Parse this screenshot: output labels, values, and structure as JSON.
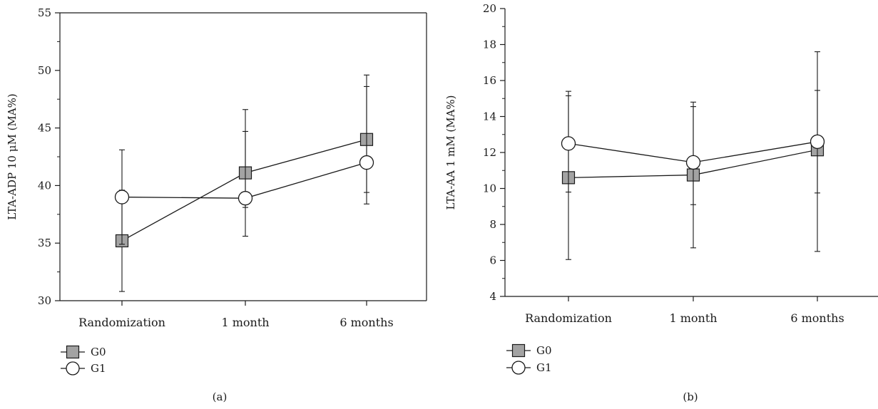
{
  "chart_data": [
    {
      "type": "line",
      "panel_label": "(a)",
      "ylabel": "LTA-ADP 10 μM (MA%)",
      "xlabel": "",
      "categories": [
        "Randomization",
        "1 month",
        "6 months"
      ],
      "ylim": [
        30,
        55
      ],
      "yticks": [
        30,
        35,
        40,
        45,
        50,
        55
      ],
      "grid": false,
      "frame": "box",
      "legend_position": "bottom-left",
      "series": [
        {
          "name": "G0",
          "marker": "square",
          "values": [
            35.2,
            41.1,
            44.0
          ],
          "err_low": [
            30.8,
            35.6,
            39.4
          ],
          "err_high": [
            39.6,
            46.6,
            48.6
          ]
        },
        {
          "name": "G1",
          "marker": "circle",
          "values": [
            39.0,
            38.9,
            42.0
          ],
          "err_low": [
            34.9,
            38.1,
            38.4
          ],
          "err_high": [
            43.1,
            44.7,
            49.6
          ]
        }
      ]
    },
    {
      "type": "line",
      "panel_label": "(b)",
      "ylabel": "LTA-AA 1 mM (MA%)",
      "xlabel": "",
      "categories": [
        "Randomization",
        "1 month",
        "6 months"
      ],
      "ylim": [
        4,
        20
      ],
      "yticks": [
        4,
        6,
        8,
        10,
        12,
        14,
        16,
        18,
        20
      ],
      "grid": false,
      "frame": "left-bottom",
      "legend_position": "bottom-left",
      "series": [
        {
          "name": "G0",
          "marker": "square",
          "values": [
            10.6,
            10.75,
            12.15
          ],
          "err_low": [
            6.05,
            6.7,
            6.5
          ],
          "err_high": [
            15.15,
            14.8,
            17.6
          ]
        },
        {
          "name": "G1",
          "marker": "circle",
          "values": [
            12.5,
            11.45,
            12.6
          ],
          "err_low": [
            9.8,
            9.1,
            9.75
          ],
          "err_high": [
            15.4,
            14.55,
            15.45
          ]
        }
      ]
    }
  ]
}
